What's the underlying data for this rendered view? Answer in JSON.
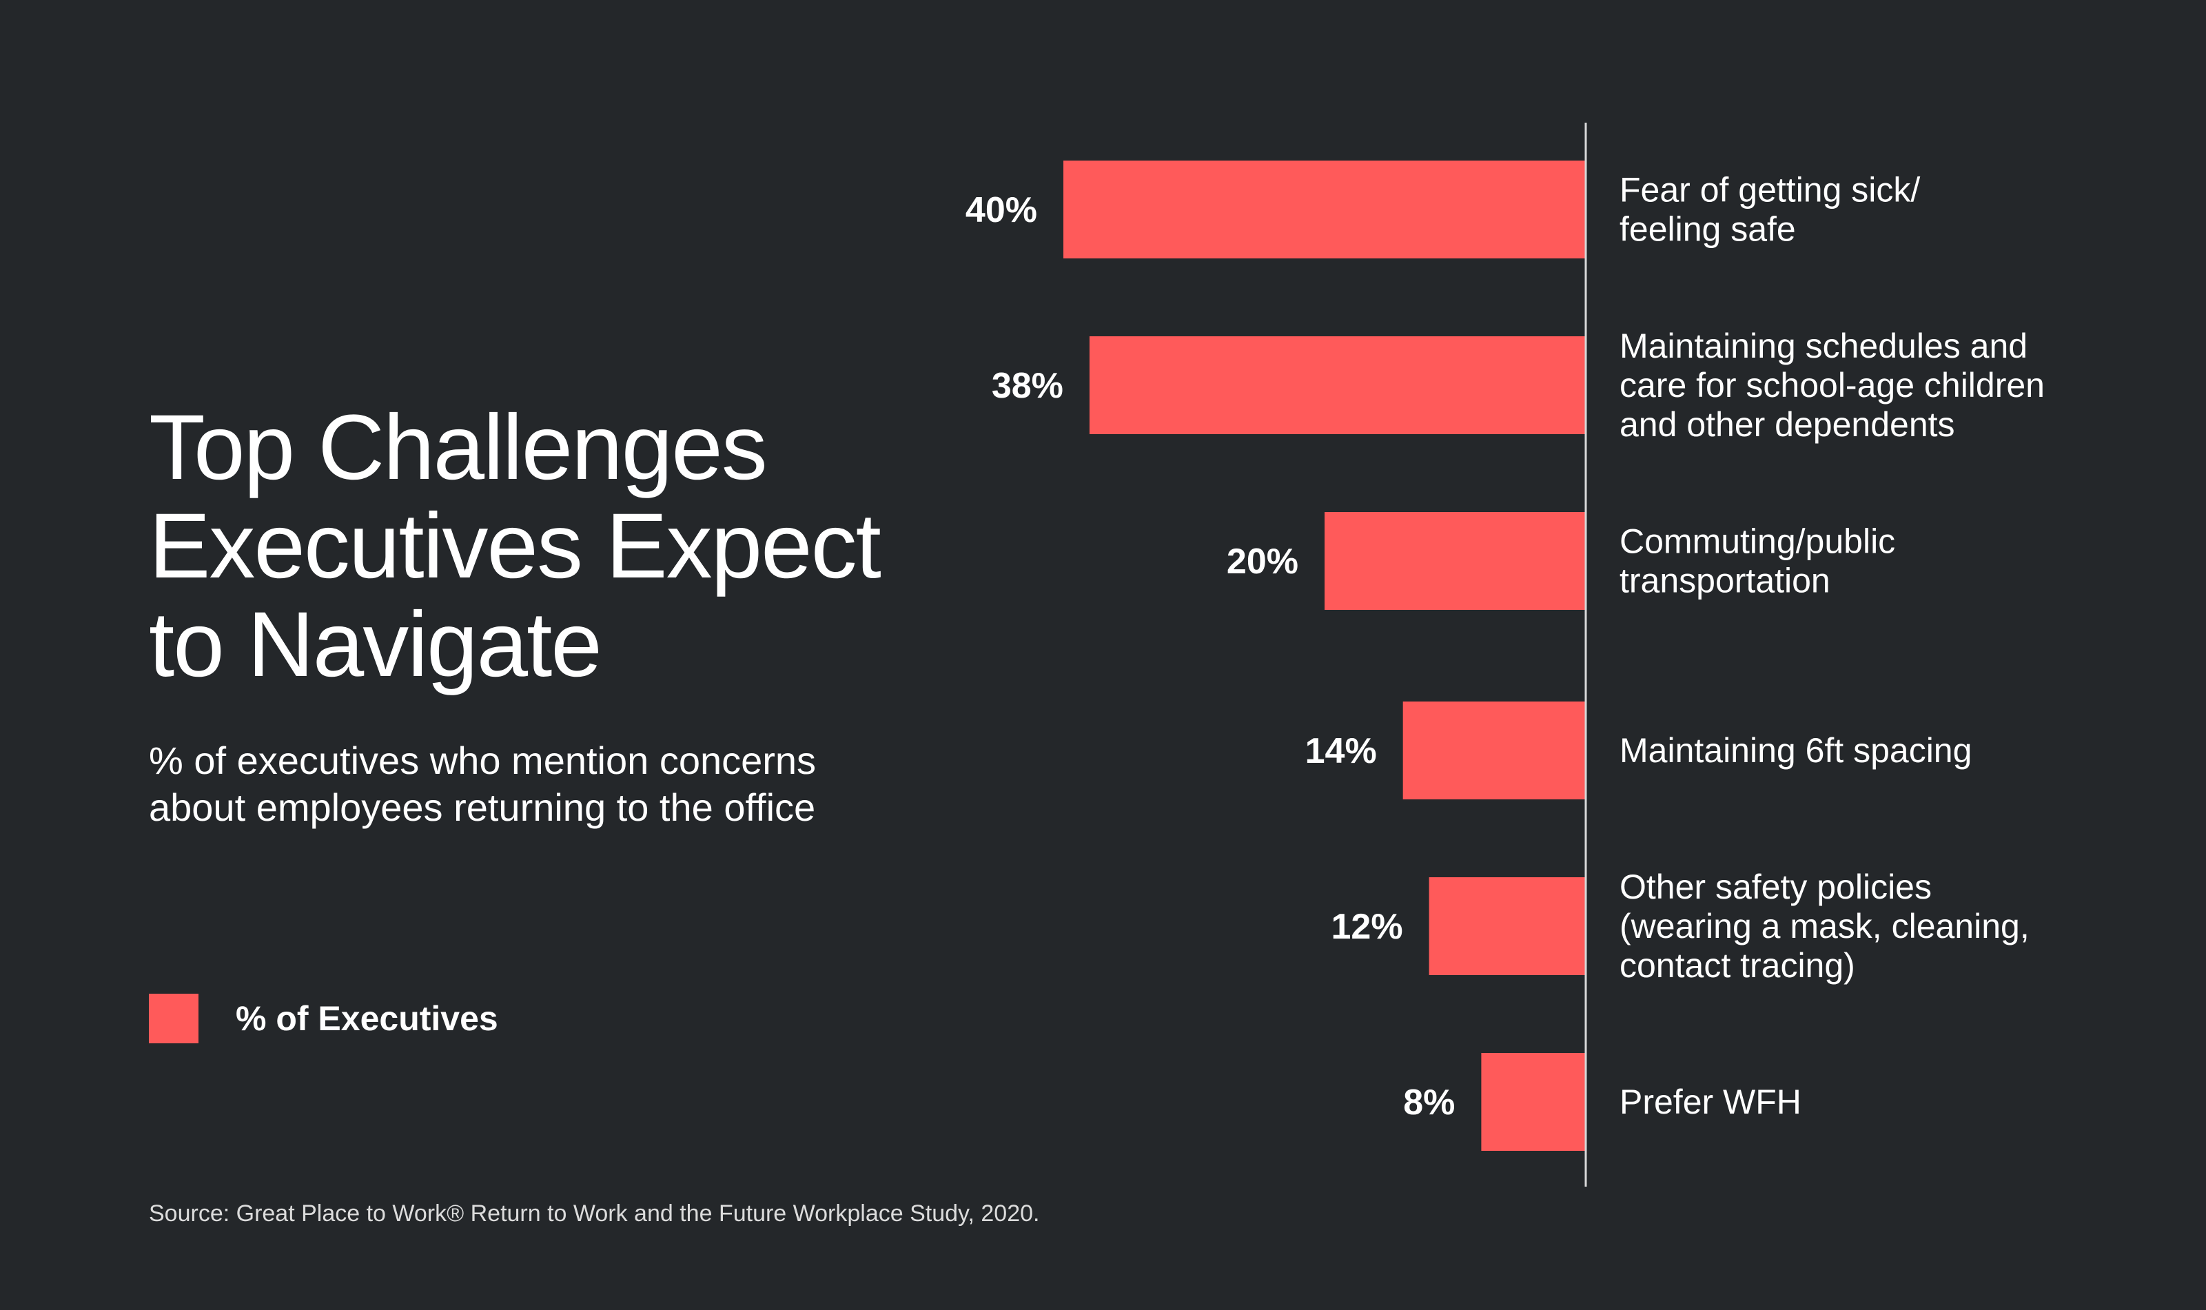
{
  "header": {
    "title_lines": [
      "Top Challenges",
      "Executives Expect",
      "to Navigate"
    ],
    "subtitle_lines": [
      "% of executives who mention concerns",
      "about employees returning to the office"
    ]
  },
  "legend": {
    "label": "% of Executives"
  },
  "source": "Source: Great Place to Work® Return to Work and the Future Workplace Study, 2020.",
  "colors": {
    "background": "#24272a",
    "bar": "#ff5a5a",
    "axis": "#d9d9d9",
    "text": "#ffffff"
  },
  "chart_data": {
    "type": "bar",
    "orientation": "horizontal",
    "title": "Top Challenges Executives Expect to Navigate",
    "subtitle": "% of executives who mention concerns about employees returning to the office",
    "categories": [
      [
        "Fear of getting sick/",
        "feeling safe"
      ],
      [
        "Maintaining schedules and",
        "care for school-age children",
        "and other dependents"
      ],
      [
        "Commuting/public",
        "transportation"
      ],
      [
        "Maintaining 6ft spacing"
      ],
      [
        "Other safety policies",
        "(wearing a mask, cleaning,",
        "contact tracing)"
      ],
      [
        "Prefer WFH"
      ]
    ],
    "series": [
      {
        "name": "% of Executives",
        "values": [
          40,
          38,
          20,
          14,
          12,
          8
        ],
        "labels": [
          "40%",
          "38%",
          "20%",
          "14%",
          "12%",
          "8%"
        ]
      }
    ],
    "xlim": [
      0,
      40
    ],
    "grid": false,
    "legend_position": "bottom-left"
  }
}
